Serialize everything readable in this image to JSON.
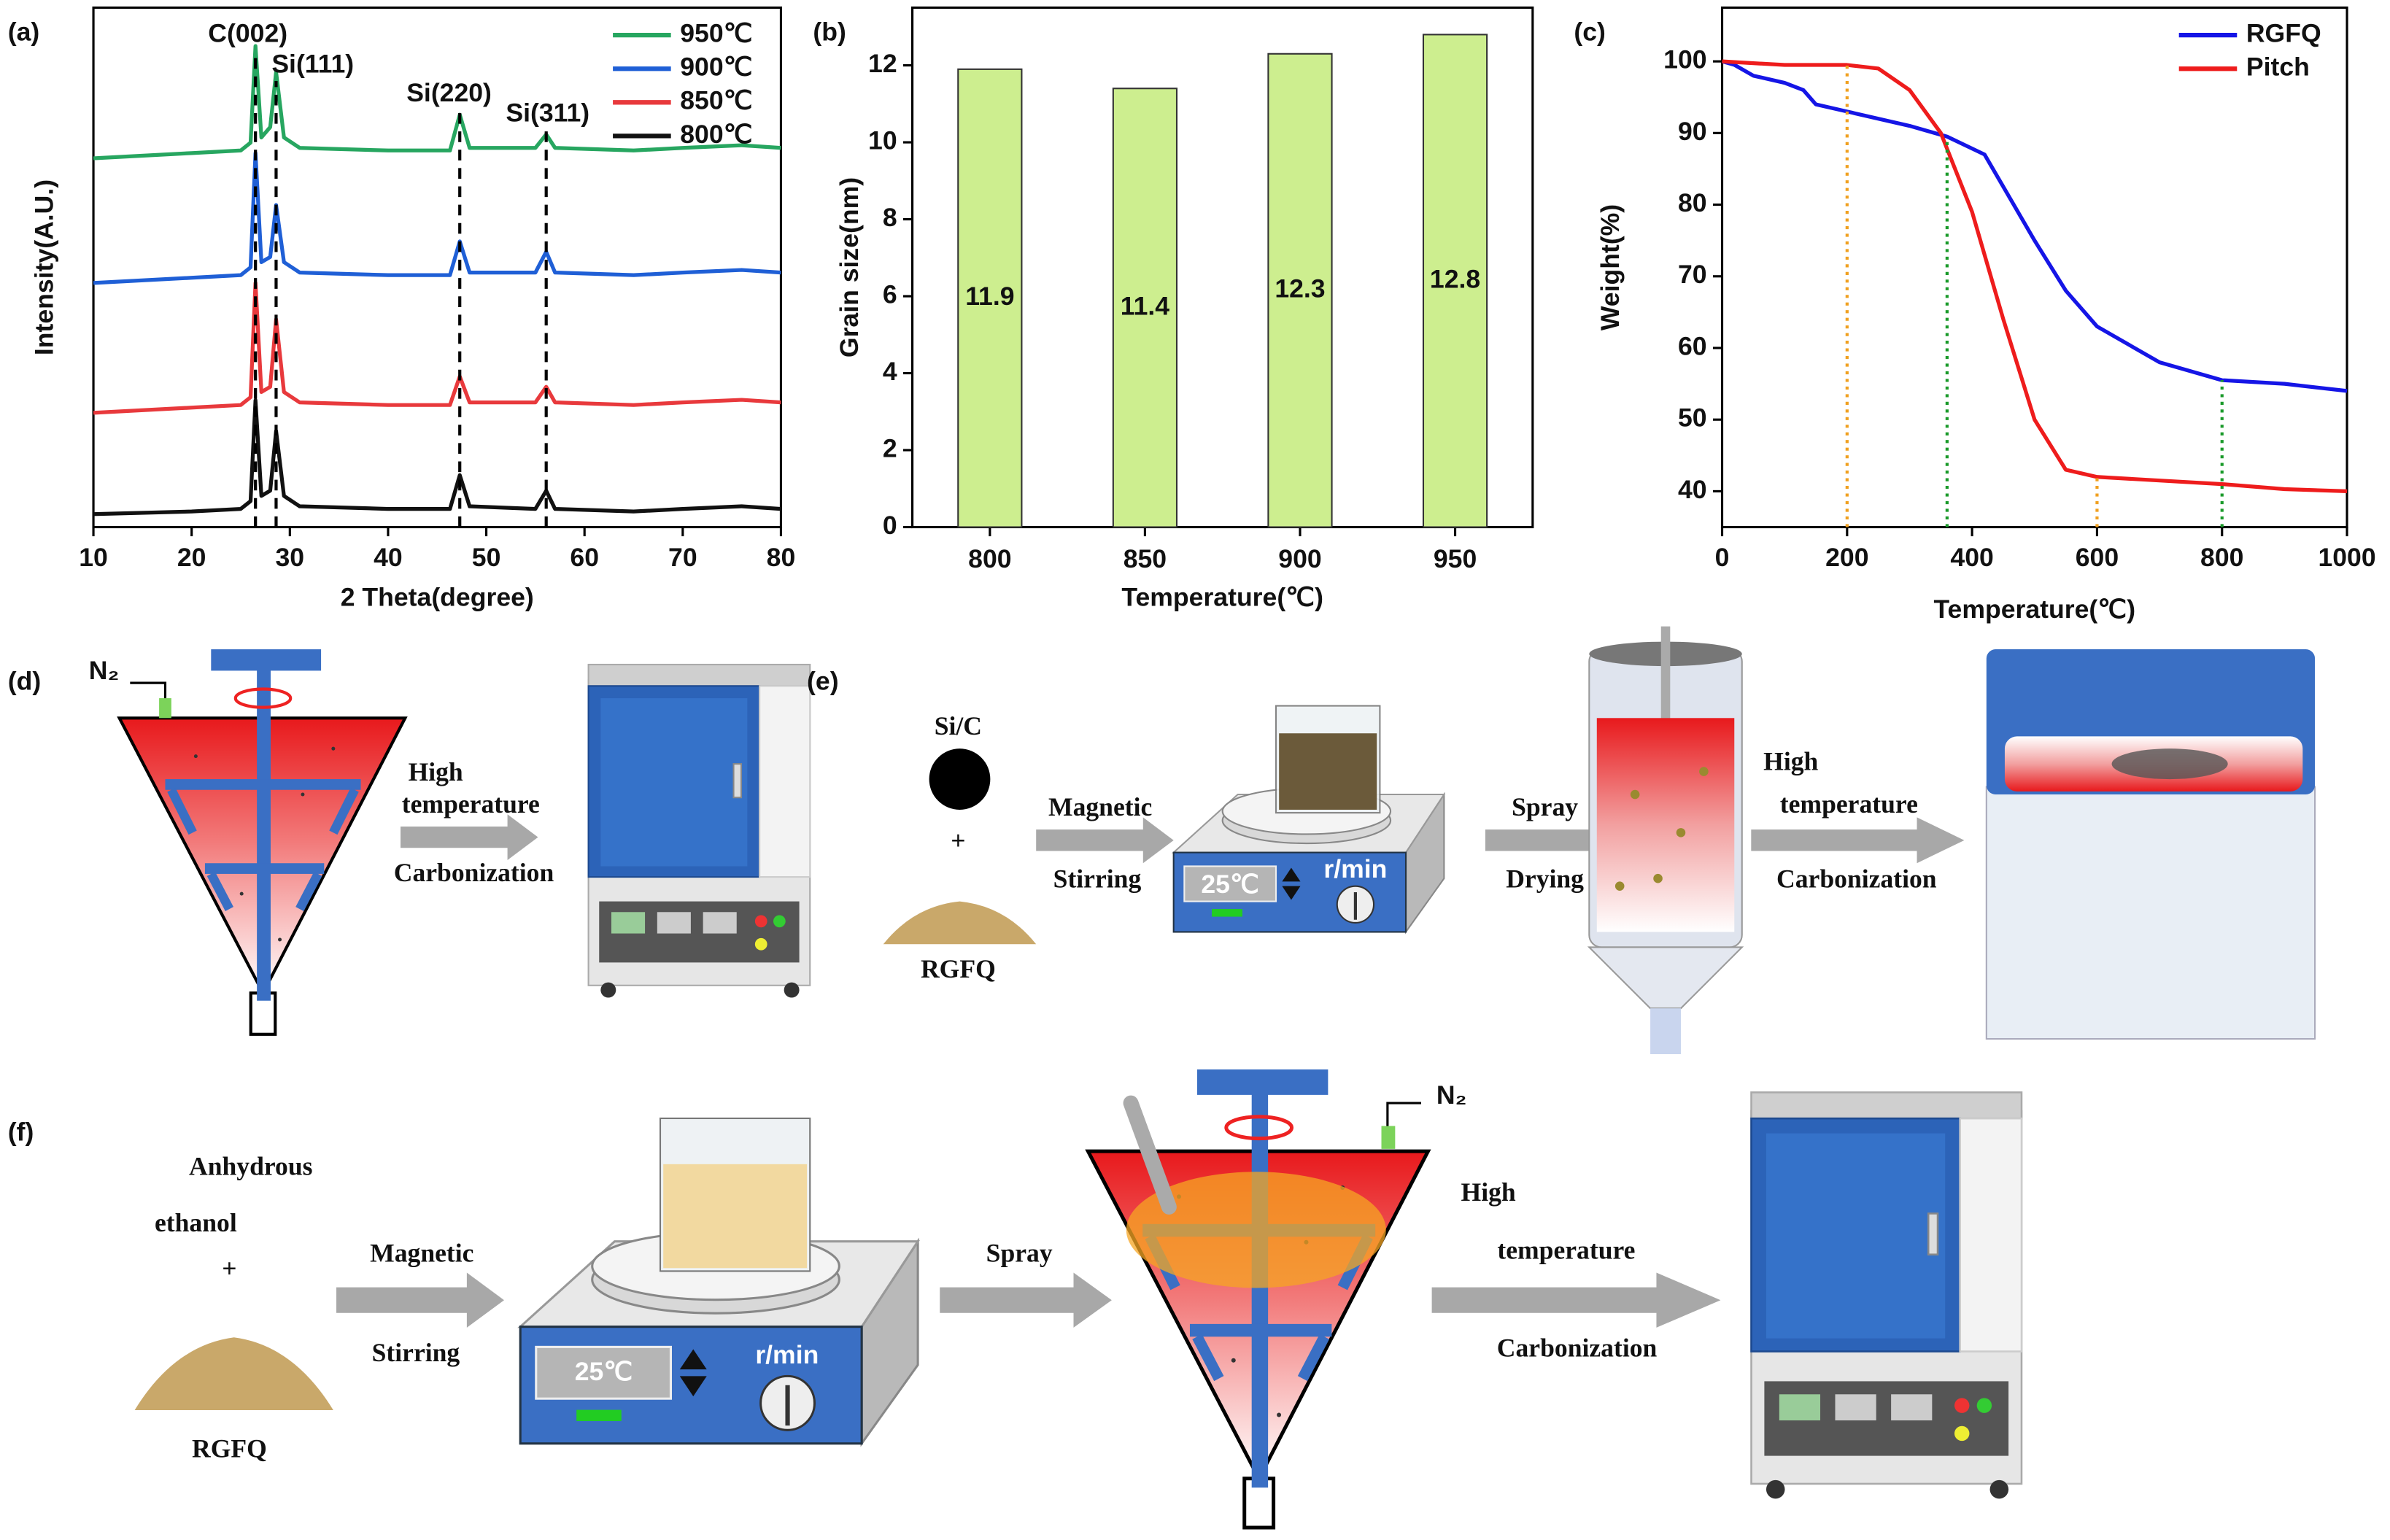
{
  "chart_data": [
    {
      "type": "line",
      "panel": "(a)",
      "xlabel": "2 Theta(degree)",
      "ylabel": "Intensity(A.U.)",
      "x": [
        10,
        20,
        25,
        26,
        26.5,
        27.1,
        28,
        28.6,
        29.4,
        31,
        40,
        46.3,
        47.3,
        48.3,
        55,
        56.1,
        57,
        65,
        70,
        76,
        80
      ],
      "xlim": [
        10,
        80
      ],
      "xticks": [
        10,
        20,
        30,
        40,
        50,
        60,
        70,
        80
      ],
      "ylim": [
        0,
        100
      ],
      "legend": "upper right",
      "series": [
        {
          "name": "950℃",
          "color": "#27a660",
          "values": [
            71,
            72,
            72.5,
            74,
            92.6,
            75,
            77,
            87.6,
            75,
            73,
            72.5,
            72.5,
            79.4,
            73,
            73,
            75.6,
            73,
            72.5,
            73,
            73.5,
            73
          ]
        },
        {
          "name": "900℃",
          "color": "#1f5fd6",
          "values": [
            47,
            48,
            48.5,
            50,
            72,
            51,
            52,
            62,
            51,
            49,
            48.5,
            48.5,
            55,
            49,
            49,
            53,
            49,
            48.5,
            49,
            49.5,
            49
          ]
        },
        {
          "name": "850℃",
          "color": "#e8393c",
          "values": [
            22,
            23,
            23.5,
            25,
            47,
            26,
            27,
            40,
            26,
            24,
            23.5,
            23.5,
            29,
            24,
            24,
            27,
            24,
            23.5,
            24,
            24.5,
            24
          ]
        },
        {
          "name": "800℃",
          "color": "#111111",
          "values": [
            2.5,
            3,
            3.5,
            5,
            24.4,
            6,
            7,
            18.5,
            6,
            4,
            3.5,
            3.5,
            10,
            4,
            3.5,
            7,
            3.5,
            3,
            3.5,
            4,
            3.5
          ]
        }
      ],
      "annotations": [
        {
          "text": "C(002)",
          "x": 26.5
        },
        {
          "text": "Si(111)",
          "x": 28.6
        },
        {
          "text": "Si(220)",
          "x": 47.3
        },
        {
          "text": "Si(311)",
          "x": 56.1
        }
      ]
    },
    {
      "type": "bar",
      "panel": "(b)",
      "xlabel": "Temperature(℃)",
      "ylabel": "Grain size(nm)",
      "categories": [
        "800",
        "850",
        "900",
        "950"
      ],
      "values": [
        11.9,
        11.4,
        12.3,
        12.8
      ],
      "color": "#cdee8f",
      "ylim": [
        0,
        13.5
      ],
      "yticks": [
        0,
        2,
        4,
        6,
        8,
        10,
        12
      ]
    },
    {
      "type": "line",
      "panel": "(c)",
      "xlabel": "Temperature(℃)",
      "ylabel": "Weight(%)",
      "xlim": [
        0,
        1000
      ],
      "xticks": [
        0,
        200,
        400,
        600,
        800,
        1000
      ],
      "ylim": [
        35,
        107.5
      ],
      "yticks": [
        40,
        50,
        60,
        70,
        80,
        90,
        100
      ],
      "legend": "upper right",
      "series": [
        {
          "name": "RGFQ",
          "color": "#1515e6",
          "x": [
            0,
            20,
            50,
            100,
            130,
            150,
            200,
            300,
            360,
            420,
            500,
            550,
            600,
            700,
            800,
            900,
            1000
          ],
          "values": [
            100,
            99.5,
            98,
            97,
            96,
            94,
            93,
            91,
            89.5,
            87,
            75,
            68,
            63,
            58,
            55.5,
            55,
            54
          ]
        },
        {
          "name": "Pitch",
          "color": "#ee1c1c",
          "x": [
            0,
            100,
            200,
            250,
            300,
            350,
            400,
            450,
            500,
            550,
            600,
            700,
            800,
            900,
            1000
          ],
          "values": [
            100,
            99.5,
            99.5,
            99,
            96,
            90,
            79,
            64,
            50,
            43,
            42,
            41.5,
            41,
            40.3,
            40
          ]
        }
      ],
      "vlines": [
        {
          "x": 200,
          "y": 99.5,
          "color": "#f0a020"
        },
        {
          "x": 360,
          "y": 89,
          "color": "#1a9a2a"
        },
        {
          "x": 600,
          "y": 42,
          "color": "#f0a020"
        },
        {
          "x": 800,
          "y": 55.5,
          "color": "#1a9a2a"
        }
      ]
    }
  ],
  "diagrams": {
    "d": {
      "panel": "(d)",
      "gas": "N₂",
      "step": [
        "High",
        "temperature",
        "Carbonization"
      ]
    },
    "e": {
      "panel": "(e)",
      "inputs": [
        "Si/C",
        "+",
        "RGFQ"
      ],
      "mix": [
        "Magnetic",
        "Stirring"
      ],
      "display": "25℃",
      "speed": "r/min",
      "dry": [
        "Spray",
        "Drying"
      ],
      "step": [
        "High",
        "temperature",
        "Carbonization"
      ]
    },
    "f": {
      "panel": "(f)",
      "inputs": [
        "Anhydrous",
        "ethanol",
        "+",
        "RGFQ"
      ],
      "mix": [
        "Magnetic",
        "Stirring"
      ],
      "display": "25℃",
      "speed": "r/min",
      "spray": "Spray",
      "gas": "N₂",
      "step": [
        "High",
        "temperature",
        "Carbonization"
      ]
    }
  }
}
